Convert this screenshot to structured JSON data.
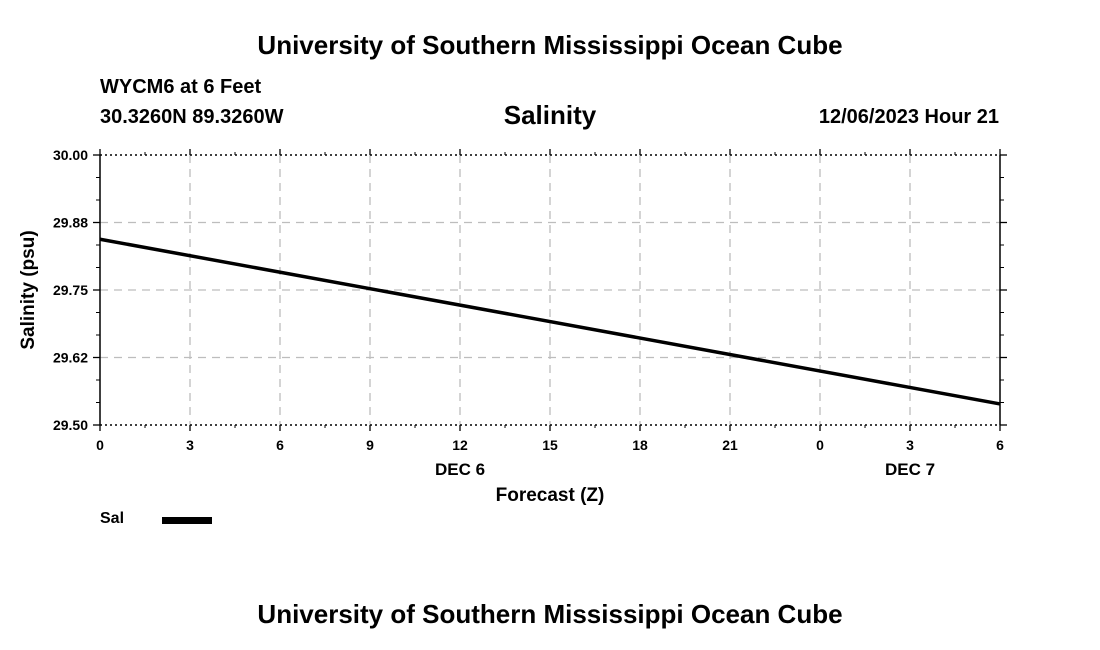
{
  "header": {
    "title": "University of Southern Mississippi Ocean Cube",
    "station": "WYCM6 at 6 Feet",
    "coords": "30.3260N  89.3260W",
    "subtitle": "Salinity",
    "datetime": "12/06/2023 Hour 21"
  },
  "footer": {
    "title": "University of Southern Mississippi Ocean Cube"
  },
  "legend": {
    "label": "Sal"
  },
  "chart_data": {
    "type": "line",
    "title": "Salinity",
    "xlabel": "Forecast (Z)",
    "ylabel": "Salinity (psu)",
    "x_ticks": [
      "0",
      "3",
      "6",
      "9",
      "12",
      "15",
      "18",
      "21",
      "0",
      "3",
      "6"
    ],
    "x_hours": [
      0,
      3,
      6,
      9,
      12,
      15,
      18,
      21,
      24,
      27,
      30
    ],
    "date_labels": [
      {
        "label": "DEC 6",
        "hour": 12
      },
      {
        "label": "DEC 7",
        "hour": 27
      }
    ],
    "y_ticks": [
      "30.00",
      "29.88",
      "29.75",
      "29.62",
      "29.50"
    ],
    "y_tick_values": [
      30.0,
      29.875,
      29.75,
      29.625,
      29.5
    ],
    "xlim": [
      0,
      30
    ],
    "ylim": [
      29.5,
      30.0
    ],
    "grid": true,
    "legend_position": "bottom-left",
    "series": [
      {
        "name": "Sal",
        "color": "#000000",
        "x": [
          0,
          30
        ],
        "y": [
          29.844,
          29.539
        ]
      }
    ]
  }
}
